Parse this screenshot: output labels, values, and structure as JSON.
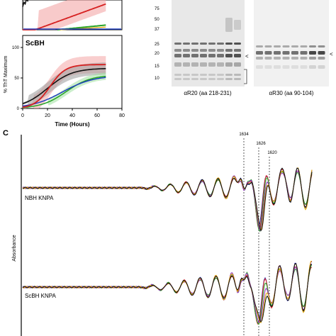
{
  "panelA": {
    "ylabel": "% ThT Maximum",
    "bottom_title": "ScBH",
    "xlabel": "Time (Hours)",
    "x_ticks": [
      "0",
      "20",
      "40",
      "60",
      "80"
    ],
    "y_ticks": [
      "0",
      "50",
      "100"
    ],
    "colors": {
      "red": "#d62020",
      "black": "#111111",
      "green": "#27a327",
      "blue": "#1f3fbf",
      "err_red": "#f4a6a6",
      "err_green": "#9fe09f",
      "err_black": "#9a9a9a",
      "err_blue": "#8fa8e8"
    }
  },
  "panelB": {
    "markers": [
      "75",
      "50",
      "37",
      "25",
      "20",
      "15",
      "10"
    ],
    "lane_label_left": "αR20 (aa 218-231)",
    "lane_label_right": "αR30 (aa 90-104)",
    "arrow_left": "<",
    "arrow_right": "<"
  },
  "panelC": {
    "letter": "C",
    "ylabel": "Absorbance",
    "trace_label_top": "NBH KNPA",
    "trace_label_bottom": "ScBH KNPA",
    "peaks": [
      "1634",
      "1626",
      "1620"
    ],
    "series_colors": [
      "#2a2ab0",
      "#d62020",
      "#27a327",
      "#8e2fb8",
      "#e0a400",
      "#111111"
    ]
  }
}
